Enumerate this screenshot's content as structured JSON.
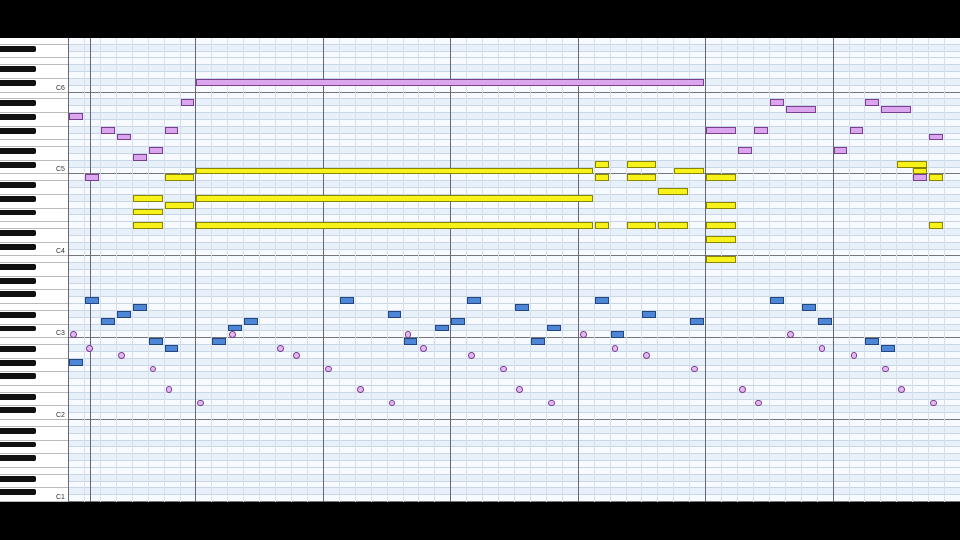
{
  "app": {
    "view": "piano-roll"
  },
  "keyboard": {
    "octave_labels": [
      {
        "text": "C6",
        "pitch": 72
      },
      {
        "text": "C5",
        "pitch": 60
      },
      {
        "text": "C4",
        "pitch": 48
      },
      {
        "text": "C3",
        "pitch": 36
      },
      {
        "text": "C2",
        "pitch": 24
      },
      {
        "text": "C1",
        "pitch": 12
      }
    ]
  },
  "colors": {
    "yellow": "#f6f21a",
    "purple": "#dca6ee",
    "blue": "#4d86d6",
    "circle": "#e4b6f2",
    "grid": "#c9d6e6",
    "bar_line": "#667788"
  },
  "notes": [
    {
      "c": "purple",
      "p": 73,
      "s": 8,
      "l": 32
    },
    {
      "c": "purple",
      "p": 70,
      "s": 7,
      "l": 1
    },
    {
      "c": "purple",
      "p": 68,
      "s": 0,
      "l": 1
    },
    {
      "c": "purple",
      "p": 66,
      "s": 2,
      "l": 1
    },
    {
      "c": "purple",
      "p": 65,
      "s": 3,
      "l": 1
    },
    {
      "c": "purple",
      "p": 63,
      "s": 5,
      "l": 1
    },
    {
      "c": "purple",
      "p": 62,
      "s": 4,
      "l": 1
    },
    {
      "c": "purple",
      "p": 66,
      "s": 6,
      "l": 1
    },
    {
      "c": "purple",
      "p": 59,
      "s": 1,
      "l": 1
    },
    {
      "c": "purple",
      "p": 66,
      "s": 40,
      "l": 2
    },
    {
      "c": "purple",
      "p": 66,
      "s": 43,
      "l": 1
    },
    {
      "c": "purple",
      "p": 63,
      "s": 42,
      "l": 1
    },
    {
      "c": "purple",
      "p": 70,
      "s": 44,
      "l": 1
    },
    {
      "c": "purple",
      "p": 69,
      "s": 45,
      "l": 2
    },
    {
      "c": "purple",
      "p": 66,
      "s": 49,
      "l": 1
    },
    {
      "c": "purple",
      "p": 63,
      "s": 48,
      "l": 1
    },
    {
      "c": "purple",
      "p": 70,
      "s": 50,
      "l": 1
    },
    {
      "c": "purple",
      "p": 69,
      "s": 51,
      "l": 2
    },
    {
      "c": "purple",
      "p": 65,
      "s": 54,
      "l": 1
    },
    {
      "c": "purple",
      "p": 59,
      "s": 53,
      "l": 1
    },
    {
      "c": "yellow",
      "p": 60,
      "s": 8,
      "l": 25
    },
    {
      "c": "yellow",
      "p": 56,
      "s": 8,
      "l": 25
    },
    {
      "c": "yellow",
      "p": 52,
      "s": 8,
      "l": 25
    },
    {
      "c": "yellow",
      "p": 59,
      "s": 6,
      "l": 2
    },
    {
      "c": "yellow",
      "p": 56,
      "s": 4,
      "l": 2
    },
    {
      "c": "yellow",
      "p": 55,
      "s": 6,
      "l": 2
    },
    {
      "c": "yellow",
      "p": 54,
      "s": 4,
      "l": 2
    },
    {
      "c": "yellow",
      "p": 52,
      "s": 4,
      "l": 2
    },
    {
      "c": "yellow",
      "p": 61,
      "s": 33,
      "l": 1
    },
    {
      "c": "yellow",
      "p": 61,
      "s": 35,
      "l": 2
    },
    {
      "c": "yellow",
      "p": 59,
      "s": 33,
      "l": 1
    },
    {
      "c": "yellow",
      "p": 59,
      "s": 35,
      "l": 2
    },
    {
      "c": "yellow",
      "p": 57,
      "s": 37,
      "l": 2
    },
    {
      "c": "yellow",
      "p": 60,
      "s": 38,
      "l": 2
    },
    {
      "c": "yellow",
      "p": 52,
      "s": 33,
      "l": 1
    },
    {
      "c": "yellow",
      "p": 52,
      "s": 35,
      "l": 2
    },
    {
      "c": "yellow",
      "p": 52,
      "s": 37,
      "l": 2
    },
    {
      "c": "yellow",
      "p": 59,
      "s": 40,
      "l": 2
    },
    {
      "c": "yellow",
      "p": 55,
      "s": 40,
      "l": 2
    },
    {
      "c": "yellow",
      "p": 52,
      "s": 40,
      "l": 2
    },
    {
      "c": "yellow",
      "p": 50,
      "s": 40,
      "l": 2
    },
    {
      "c": "yellow",
      "p": 47,
      "s": 40,
      "l": 2
    },
    {
      "c": "yellow",
      "p": 61,
      "s": 52,
      "l": 2
    },
    {
      "c": "yellow",
      "p": 60,
      "s": 53,
      "l": 1
    },
    {
      "c": "yellow",
      "p": 59,
      "s": 54,
      "l": 1
    },
    {
      "c": "yellow",
      "p": 52,
      "s": 54,
      "l": 1
    },
    {
      "c": "blue",
      "p": 41,
      "s": 1,
      "l": 1
    },
    {
      "c": "blue",
      "p": 38,
      "s": 2,
      "l": 1
    },
    {
      "c": "blue",
      "p": 39,
      "s": 3,
      "l": 1
    },
    {
      "c": "blue",
      "p": 40,
      "s": 4,
      "l": 1
    },
    {
      "c": "blue",
      "p": 35,
      "s": 5,
      "l": 1
    },
    {
      "c": "blue",
      "p": 34,
      "s": 6,
      "l": 1
    },
    {
      "c": "blue",
      "p": 32,
      "s": 0,
      "l": 1
    },
    {
      "c": "blue",
      "p": 35,
      "s": 9,
      "l": 1
    },
    {
      "c": "blue",
      "p": 37,
      "s": 10,
      "l": 1
    },
    {
      "c": "blue",
      "p": 38,
      "s": 11,
      "l": 1
    },
    {
      "c": "blue",
      "p": 41,
      "s": 17,
      "l": 1
    },
    {
      "c": "blue",
      "p": 39,
      "s": 20,
      "l": 1
    },
    {
      "c": "blue",
      "p": 37,
      "s": 23,
      "l": 1
    },
    {
      "c": "blue",
      "p": 38,
      "s": 24,
      "l": 1
    },
    {
      "c": "blue",
      "p": 35,
      "s": 21,
      "l": 1
    },
    {
      "c": "blue",
      "p": 41,
      "s": 25,
      "l": 1
    },
    {
      "c": "blue",
      "p": 40,
      "s": 28,
      "l": 1
    },
    {
      "c": "blue",
      "p": 35,
      "s": 29,
      "l": 1
    },
    {
      "c": "blue",
      "p": 37,
      "s": 30,
      "l": 1
    },
    {
      "c": "blue",
      "p": 41,
      "s": 33,
      "l": 1
    },
    {
      "c": "blue",
      "p": 39,
      "s": 36,
      "l": 1
    },
    {
      "c": "blue",
      "p": 36,
      "s": 34,
      "l": 1
    },
    {
      "c": "blue",
      "p": 38,
      "s": 39,
      "l": 1
    },
    {
      "c": "blue",
      "p": 40,
      "s": 46,
      "l": 1
    },
    {
      "c": "blue",
      "p": 38,
      "s": 47,
      "l": 1
    },
    {
      "c": "blue",
      "p": 41,
      "s": 44,
      "l": 1
    },
    {
      "c": "blue",
      "p": 35,
      "s": 50,
      "l": 1
    },
    {
      "c": "blue",
      "p": 34,
      "s": 51,
      "l": 1
    }
  ]
}
